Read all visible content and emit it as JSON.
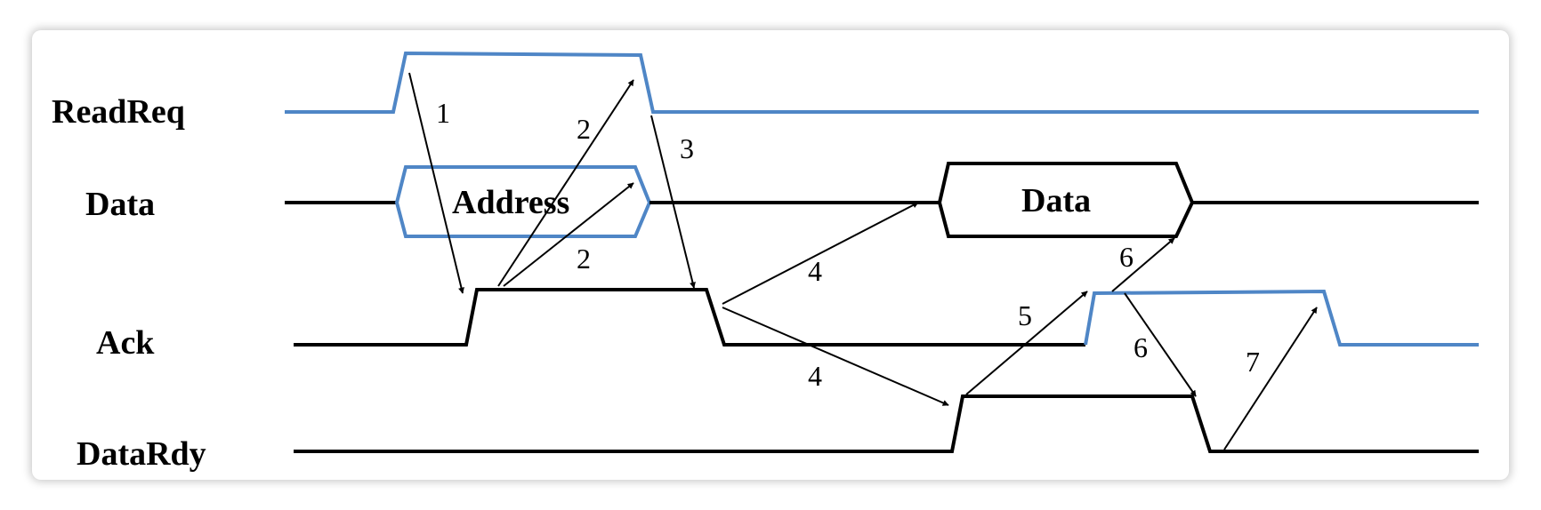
{
  "signals": {
    "read_req": "ReadReq",
    "data": "Data",
    "ack": "Ack",
    "data_rdy": "DataRdy"
  },
  "bus_values": {
    "address": "Address",
    "data": "Data"
  },
  "steps": [
    "1",
    "2",
    "2",
    "3",
    "4",
    "4",
    "5",
    "6",
    "6",
    "7"
  ],
  "colors": {
    "accent": "#4f86c6",
    "line": "#000000"
  }
}
